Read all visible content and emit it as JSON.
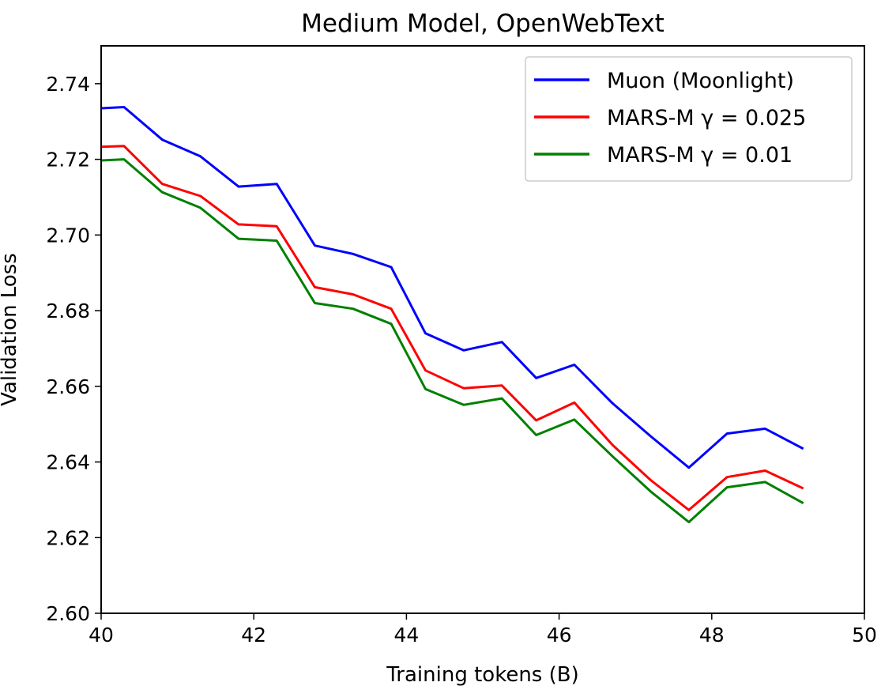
{
  "chart_data": {
    "type": "line",
    "title": "Medium Model, OpenWebText",
    "xlabel": "Training tokens (B)",
    "ylabel": "Validation Loss",
    "xlim": [
      40,
      50
    ],
    "ylim": [
      2.6,
      2.75
    ],
    "xticks": [
      "40",
      "42",
      "44",
      "46",
      "48",
      "50"
    ],
    "yticks": [
      "2.60",
      "2.62",
      "2.64",
      "2.66",
      "2.68",
      "2.70",
      "2.72",
      "2.74"
    ],
    "grid": false,
    "legend_position": "top-right",
    "x": [
      40.0,
      40.3,
      40.8,
      41.3,
      41.8,
      42.3,
      42.8,
      43.3,
      43.8,
      44.25,
      44.75,
      45.25,
      45.7,
      46.2,
      46.7,
      47.2,
      47.7,
      48.2,
      48.7,
      49.2
    ],
    "series": [
      {
        "name": "Muon (Moonlight)",
        "color": "#0000ff",
        "values": [
          2.7335,
          2.7338,
          2.7252,
          2.7208,
          2.7128,
          2.7135,
          2.6972,
          2.695,
          2.6915,
          2.674,
          2.6695,
          2.6717,
          2.6622,
          2.6657,
          2.6555,
          2.6468,
          2.6385,
          2.6475,
          2.6488,
          2.6435
        ]
      },
      {
        "name": "MARS-M γ = 0.025",
        "color": "#ff0000",
        "values": [
          2.7233,
          2.7235,
          2.7135,
          2.7103,
          2.7028,
          2.7023,
          2.6862,
          2.6843,
          2.6805,
          2.6642,
          2.6595,
          2.6602,
          2.651,
          2.6557,
          2.6445,
          2.6352,
          2.6273,
          2.636,
          2.6377,
          2.633
        ]
      },
      {
        "name": "MARS-M γ = 0.01",
        "color": "#008000",
        "values": [
          2.7197,
          2.72,
          2.7113,
          2.7072,
          2.699,
          2.6985,
          2.682,
          2.6805,
          2.6765,
          2.6593,
          2.6551,
          2.6568,
          2.6471,
          2.6512,
          2.6415,
          2.6322,
          2.6241,
          2.6333,
          2.6347,
          2.6291
        ]
      }
    ]
  }
}
